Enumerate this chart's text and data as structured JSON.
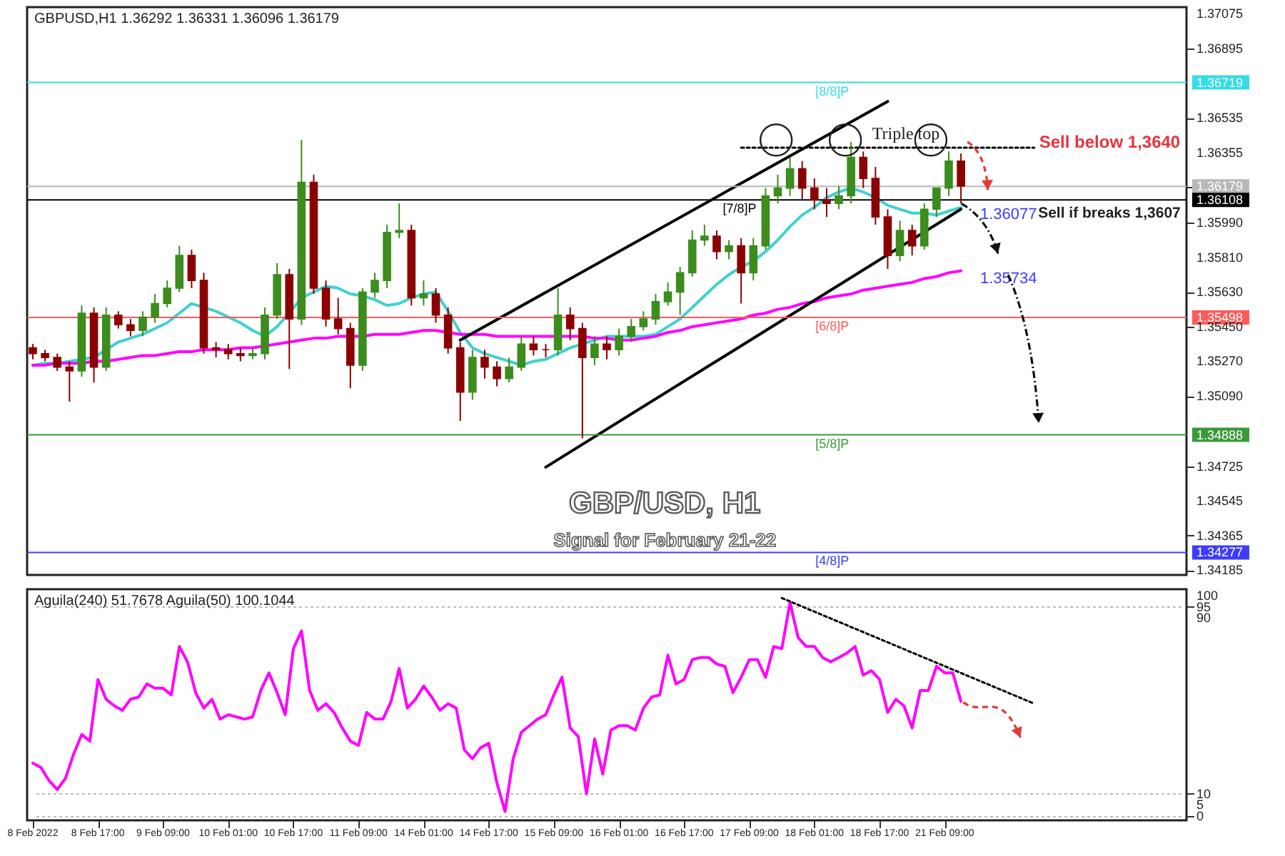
{
  "chart_data": [
    {
      "type": "candlestick",
      "title": "GBP/USD, H1",
      "subtitle": "Signal for February 21-22",
      "categories": [
        null,
        null,
        null,
        null,
        null,
        null,
        null,
        null,
        null,
        null,
        null,
        null,
        null,
        null,
        null,
        null,
        null,
        null,
        null,
        null,
        null,
        null,
        null,
        null,
        null,
        null,
        null,
        null,
        null,
        null,
        null,
        null,
        null,
        null,
        null,
        null,
        null,
        null,
        null,
        null,
        null,
        null,
        null,
        null,
        null,
        null,
        null,
        null,
        null,
        null,
        null,
        null,
        null,
        null,
        null,
        null,
        null,
        null,
        null,
        null,
        null,
        null,
        null,
        null,
        null,
        null,
        null,
        null,
        null,
        null,
        null,
        null,
        null,
        null,
        null,
        null,
        null,
        null,
        null,
        null,
        null,
        null,
        null,
        null,
        null,
        null,
        null,
        null,
        null,
        null,
        null,
        null,
        null,
        null,
        null
      ],
      "ohlc": [
        [
          1.3534,
          1.3536,
          1.3528,
          1.3531
        ],
        [
          1.3531,
          1.3533,
          1.3527,
          1.3529
        ],
        [
          1.3529,
          1.3531,
          1.3522,
          1.3524
        ],
        [
          1.3524,
          1.3527,
          1.3506,
          1.3522
        ],
        [
          1.3522,
          1.3556,
          1.3519,
          1.3552
        ],
        [
          1.3552,
          1.3555,
          1.3516,
          1.3524
        ],
        [
          1.3524,
          1.3555,
          1.3522,
          1.3551
        ],
        [
          1.3551,
          1.3553,
          1.3544,
          1.3546
        ],
        [
          1.3546,
          1.3549,
          1.354,
          1.3543
        ],
        [
          1.3543,
          1.3553,
          1.354,
          1.355
        ],
        [
          1.355,
          1.3562,
          1.3547,
          1.3557
        ],
        [
          1.3557,
          1.3569,
          1.3555,
          1.3565
        ],
        [
          1.3565,
          1.3587,
          1.3563,
          1.3582
        ],
        [
          1.3582,
          1.3585,
          1.3565,
          1.3569
        ],
        [
          1.3569,
          1.3573,
          1.3531,
          1.3534
        ],
        [
          1.3534,
          1.3537,
          1.3529,
          1.3533
        ],
        [
          1.3533,
          1.3536,
          1.3528,
          1.3531
        ],
        [
          1.3531,
          1.3534,
          1.3527,
          1.353
        ],
        [
          1.353,
          1.3534,
          1.3528,
          1.3531
        ],
        [
          1.3531,
          1.3555,
          1.3528,
          1.3551
        ],
        [
          1.3551,
          1.3578,
          1.3549,
          1.3572
        ],
        [
          1.3572,
          1.3575,
          1.3523,
          1.3549
        ],
        [
          1.3549,
          1.3642,
          1.3546,
          1.362
        ],
        [
          1.362,
          1.3624,
          1.3562,
          1.3565
        ],
        [
          1.3565,
          1.3569,
          1.3545,
          1.3549
        ],
        [
          1.3549,
          1.356,
          1.3541,
          1.3544
        ],
        [
          1.3544,
          1.3547,
          1.3513,
          1.3525
        ],
        [
          1.3525,
          1.3565,
          1.3522,
          1.3563
        ],
        [
          1.3563,
          1.3573,
          1.356,
          1.3569
        ],
        [
          1.3569,
          1.3598,
          1.3565,
          1.3594
        ],
        [
          1.3594,
          1.3609,
          1.3591,
          1.3595
        ],
        [
          1.3595,
          1.3598,
          1.3556,
          1.356
        ],
        [
          1.356,
          1.3569,
          1.3556,
          1.3562
        ],
        [
          1.3562,
          1.3565,
          1.3547,
          1.3551
        ],
        [
          1.3551,
          1.3555,
          1.3531,
          1.3534
        ],
        [
          1.3534,
          1.3537,
          1.3496,
          1.3511
        ],
        [
          1.3511,
          1.3533,
          1.3507,
          1.3529
        ],
        [
          1.3529,
          1.3533,
          1.3518,
          1.3524
        ],
        [
          1.3524,
          1.3527,
          1.3514,
          1.3518
        ],
        [
          1.3518,
          1.3529,
          1.3516,
          1.3524
        ],
        [
          1.3524,
          1.354,
          1.3522,
          1.3536
        ],
        [
          1.3536,
          1.354,
          1.353,
          1.3533
        ],
        [
          1.3533,
          1.3536,
          1.3529,
          1.3533
        ],
        [
          1.3533,
          1.3565,
          1.353,
          1.3551
        ],
        [
          1.3551,
          1.3555,
          1.3538,
          1.3544
        ],
        [
          1.3544,
          1.3547,
          1.3487,
          1.3529
        ],
        [
          1.3529,
          1.354,
          1.3525,
          1.3536
        ],
        [
          1.3536,
          1.354,
          1.3528,
          1.3533
        ],
        [
          1.3533,
          1.3544,
          1.353,
          1.354
        ],
        [
          1.354,
          1.3549,
          1.3537,
          1.3545
        ],
        [
          1.3545,
          1.3553,
          1.3543,
          1.3549
        ],
        [
          1.3549,
          1.3562,
          1.3546,
          1.3558
        ],
        [
          1.3558,
          1.3568,
          1.3556,
          1.3563
        ],
        [
          1.3563,
          1.3576,
          1.3551,
          1.3573
        ],
        [
          1.3573,
          1.3595,
          1.3571,
          1.359
        ],
        [
          1.359,
          1.3598,
          1.3587,
          1.3592
        ],
        [
          1.3592,
          1.3595,
          1.358,
          1.3584
        ],
        [
          1.3584,
          1.359,
          1.358,
          1.3587
        ],
        [
          1.3587,
          1.3591,
          1.3557,
          1.3573
        ],
        [
          1.3573,
          1.3591,
          1.3569,
          1.3587
        ],
        [
          1.3587,
          1.3617,
          1.3585,
          1.3613
        ],
        [
          1.3613,
          1.3624,
          1.3609,
          1.3617
        ],
        [
          1.3617,
          1.3633,
          1.3613,
          1.3627
        ],
        [
          1.3627,
          1.3631,
          1.3611,
          1.3617
        ],
        [
          1.3617,
          1.3622,
          1.3606,
          1.3611
        ],
        [
          1.3611,
          1.3617,
          1.3602,
          1.3609
        ],
        [
          1.3609,
          1.3618,
          1.3606,
          1.3613
        ],
        [
          1.3613,
          1.3641,
          1.3609,
          1.3633
        ],
        [
          1.3633,
          1.3636,
          1.3617,
          1.3622
        ],
        [
          1.3622,
          1.3628,
          1.3598,
          1.3602
        ],
        [
          1.3602,
          1.3606,
          1.3575,
          1.3582
        ],
        [
          1.3582,
          1.36,
          1.3579,
          1.3595
        ],
        [
          1.3595,
          1.3598,
          1.3582,
          1.3587
        ],
        [
          1.3587,
          1.3609,
          1.3585,
          1.3606
        ],
        [
          1.3606,
          1.3617,
          1.3602,
          1.3617
        ],
        [
          1.3617,
          1.3636,
          1.3613,
          1.3631
        ],
        [
          1.3631,
          1.3635,
          1.3609,
          1.3618
        ],
        null,
        null,
        null,
        null,
        null,
        null,
        null,
        null,
        null,
        null,
        null,
        null,
        null,
        null,
        null,
        null,
        null,
        null
      ],
      "colors": [
        "#8b0000",
        "#8b0000",
        "#8b0000",
        "#8b0000",
        "#3c8c1e",
        "#8b0000",
        "#3c8c1e",
        "#8b0000",
        "#8b0000",
        "#3c8c1e",
        "#3c8c1e",
        "#3c8c1e",
        "#3c8c1e",
        "#8b0000",
        "#8b0000",
        "#8b0000",
        "#8b0000",
        "#8b0000",
        "#3c8c1e",
        "#3c8c1e",
        "#3c8c1e",
        "#8b0000",
        "#3c8c1e",
        "#8b0000",
        "#8b0000",
        "#8b0000",
        "#8b0000",
        "#3c8c1e",
        "#3c8c1e",
        "#3c8c1e",
        "#3c8c1e",
        "#8b0000",
        "#3c8c1e",
        "#8b0000",
        "#8b0000",
        "#8b0000",
        "#3c8c1e",
        "#8b0000",
        "#8b0000",
        "#3c8c1e",
        "#3c8c1e",
        "#8b0000",
        "#8b0000",
        "#3c8c1e",
        "#8b0000",
        "#8b0000",
        "#3c8c1e",
        "#8b0000",
        "#3c8c1e",
        "#3c8c1e",
        "#3c8c1e",
        "#3c8c1e",
        "#3c8c1e",
        "#3c8c1e",
        "#3c8c1e",
        "#3c8c1e",
        "#8b0000",
        "#3c8c1e",
        "#8b0000",
        "#3c8c1e",
        "#3c8c1e",
        "#3c8c1e",
        "#3c8c1e",
        "#8b0000",
        "#8b0000",
        "#8b0000",
        "#3c8c1e",
        "#3c8c1e",
        "#8b0000",
        "#8b0000",
        "#8b0000",
        "#3c8c1e",
        "#8b0000",
        "#3c8c1e",
        "#3c8c1e",
        "#3c8c1e",
        "#8b0000",
        null,
        null,
        null,
        null,
        null,
        null,
        null,
        null,
        null,
        null,
        null,
        null,
        null,
        null,
        null,
        null,
        null,
        null
      ],
      "series": [
        {
          "type": "line",
          "color": "#40d0d0",
          "values": [
            1.3525,
            1.3526,
            1.3526,
            1.3527,
            1.3528,
            1.3529,
            1.3533,
            1.3537,
            1.3539,
            1.3541,
            1.3544,
            1.3547,
            1.3552,
            1.3557,
            1.3555,
            1.3553,
            1.355,
            1.3547,
            1.3543,
            1.354,
            1.3545,
            1.3552,
            1.356,
            1.3563,
            1.3566,
            1.3565,
            1.3562,
            1.3561,
            1.3559,
            1.3556,
            1.3557,
            1.356,
            1.3562,
            1.3563,
            1.3553,
            1.3542,
            1.3534,
            1.3531,
            1.3529,
            1.3527,
            1.3525,
            1.3527,
            1.3528,
            1.3531,
            1.3534,
            1.3536,
            1.3538,
            1.354,
            1.354,
            1.354,
            1.354,
            1.3541,
            1.3545,
            1.3549,
            1.3555,
            1.3561,
            1.3567,
            1.3572,
            1.3576,
            1.3579,
            1.3584,
            1.359,
            1.3597,
            1.3603,
            1.3607,
            1.3612,
            1.3615,
            1.3617,
            1.3615,
            1.3612,
            1.3608,
            1.3606,
            1.3604,
            1.3604,
            1.3603,
            1.3605,
            1.3607,
            null,
            null,
            null,
            null,
            null,
            null,
            null,
            null,
            null,
            null,
            null,
            null,
            null,
            null,
            null,
            null,
            null,
            null
          ]
        },
        {
          "type": "line",
          "color": "#ff00ff",
          "values": [
            1.3525,
            1.3525,
            1.3526,
            1.3526,
            1.3526,
            1.3527,
            1.3527,
            1.3528,
            1.3529,
            1.353,
            1.353,
            1.3531,
            1.3532,
            1.3532,
            1.3533,
            1.3533,
            1.3533,
            1.3534,
            1.3534,
            1.3535,
            1.3536,
            1.3537,
            1.3538,
            1.3539,
            1.3539,
            1.354,
            1.354,
            1.354,
            1.3541,
            1.3541,
            1.3541,
            1.3542,
            1.3543,
            1.3543,
            1.3542,
            1.3541,
            1.3541,
            1.3541,
            1.354,
            1.354,
            1.354,
            1.354,
            1.354,
            1.354,
            1.354,
            1.354,
            1.3539,
            1.3539,
            1.3538,
            1.3538,
            1.3539,
            1.354,
            1.3542,
            1.3543,
            1.3545,
            1.3546,
            1.3547,
            1.3548,
            1.3549,
            1.3551,
            1.3552,
            1.3554,
            1.3555,
            1.3557,
            1.3558,
            1.356,
            1.3561,
            1.3562,
            1.3564,
            1.3565,
            1.3566,
            1.3567,
            1.3568,
            1.357,
            1.3571,
            1.3573,
            1.3574,
            null,
            null,
            null,
            null,
            null,
            null,
            null,
            null,
            null,
            null,
            null,
            null,
            null,
            null,
            null,
            null,
            null,
            null
          ]
        },
        {
          "type": "line",
          "color": "#000000",
          "values": [
            null,
            null,
            null,
            null,
            null,
            null,
            null,
            null,
            null,
            null,
            null,
            null,
            null,
            null,
            null,
            null,
            null,
            null,
            null,
            null,
            null,
            null,
            null,
            null,
            null,
            null,
            null,
            null,
            null,
            null,
            null,
            null,
            null,
            null,
            null,
            1.3538,
            null,
            null,
            null,
            null,
            null,
            null,
            null,
            null,
            null,
            null,
            null,
            null,
            null,
            null,
            null,
            null,
            null,
            null,
            null,
            null,
            null,
            null,
            null,
            null,
            null,
            null,
            null,
            null,
            null,
            null,
            null,
            null,
            null,
            null,
            1.3662,
            null,
            null,
            null,
            null,
            null,
            null,
            null,
            null,
            null,
            null,
            null,
            null,
            null,
            null,
            null,
            null,
            null,
            null,
            null,
            null,
            null,
            null,
            null,
            null
          ]
        },
        {
          "type": "line",
          "color": "#000000",
          "values": [
            null,
            null,
            null,
            null,
            null,
            null,
            null,
            null,
            null,
            null,
            null,
            null,
            null,
            null,
            null,
            null,
            null,
            null,
            null,
            null,
            null,
            null,
            null,
            null,
            null,
            null,
            null,
            null,
            null,
            null,
            null,
            null,
            null,
            null,
            null,
            null,
            null,
            null,
            null,
            null,
            null,
            null,
            1.3472,
            null,
            null,
            null,
            null,
            null,
            null,
            null,
            null,
            null,
            null,
            null,
            null,
            null,
            null,
            null,
            null,
            null,
            null,
            null,
            null,
            null,
            null,
            null,
            null,
            null,
            null,
            null,
            null,
            null,
            null,
            null,
            null,
            null,
            1.3606,
            null,
            null,
            null,
            null,
            null,
            null,
            null,
            null,
            null,
            null,
            null,
            null,
            null,
            null,
            null,
            null,
            null,
            null
          ]
        },
        {
          "type": "line",
          "color": "#000000",
          "line_style": "dotted",
          "values": [
            null,
            null,
            null,
            null,
            null,
            null,
            null,
            null,
            null,
            null,
            null,
            null,
            null,
            null,
            null,
            null,
            null,
            null,
            null,
            null,
            null,
            null,
            null,
            null,
            null,
            null,
            null,
            null,
            null,
            null,
            null,
            null,
            null,
            null,
            null,
            null,
            null,
            null,
            null,
            null,
            null,
            null,
            null,
            null,
            null,
            null,
            null,
            null,
            null,
            null,
            null,
            null,
            null,
            null,
            null,
            null,
            null,
            null,
            1.3638,
            null,
            null,
            null,
            null,
            null,
            null,
            null,
            null,
            null,
            null,
            null,
            null,
            null,
            null,
            null,
            null,
            null,
            null,
            null,
            null,
            null,
            null,
            null,
            1.3638,
            null,
            null,
            null,
            null,
            null,
            null,
            null,
            null,
            null,
            null,
            null,
            null
          ]
        }
      ],
      "ref_lines": [
        {
          "axis": "y",
          "value": 1.36719,
          "label": "[8/8]P",
          "color": "#33dde8"
        },
        {
          "axis": "y",
          "value": 1.36179,
          "label": null,
          "color": "#b8b8b8"
        },
        {
          "axis": "y",
          "value": 1.36108,
          "label": "[7/8]P",
          "color": "#000000"
        },
        {
          "axis": "y",
          "value": 1.35498,
          "label": "[6/8]P",
          "color": "#ff5a5a"
        },
        {
          "axis": "y",
          "value": 1.34888,
          "label": "[5/8]P",
          "color": "#3a9a3a"
        },
        {
          "axis": "y",
          "value": 1.34277,
          "label": "[4/8]P",
          "color": "#3c3cff"
        }
      ],
      "annotations": [
        "GBPUSD,H1  1.36292 1.36331 1.36096 1.36179",
        "Triple top",
        "Sell below 1,3640",
        "Sell if breaks 1,3607",
        "1.36077",
        "1.35734"
      ],
      "ylim": [
        1.3416,
        1.3711
      ],
      "yticks": [
        {
          "value": 1.34185,
          "label": "1.34185"
        },
        1.34277,
        1.34365,
        1.34545,
        1.34725,
        1.34888,
        {
          "value": 1.3509,
          "label": "1.35090"
        },
        {
          "value": 1.3527,
          "label": "1.35270"
        },
        {
          "value": 1.3545,
          "label": "1.35450"
        },
        1.35498,
        {
          "value": 1.3563,
          "label": "1.35630"
        },
        {
          "value": 1.3581,
          "label": "1.35810"
        },
        {
          "value": 1.3599,
          "label": "1.35990"
        },
        1.36108,
        1.36179,
        1.36355,
        1.36535,
        1.36719,
        1.36895,
        1.37075
      ],
      "tick_labels": "y"
    },
    {
      "type": "line",
      "categories": [
        "8 Feb 2022",
        null,
        null,
        null,
        null,
        null,
        null,
        null,
        "8 Feb 17:00",
        null,
        null,
        null,
        null,
        null,
        null,
        null,
        "9 Feb 09:00",
        null,
        null,
        null,
        null,
        null,
        null,
        null,
        "10 Feb 01:00",
        null,
        null,
        null,
        null,
        null,
        null,
        null,
        "10 Feb 17:00",
        null,
        null,
        null,
        null,
        null,
        null,
        null,
        "11 Feb 09:00",
        null,
        null,
        null,
        null,
        null,
        null,
        null,
        "14 Feb 01:00",
        null,
        null,
        null,
        null,
        null,
        null,
        null,
        "14 Feb 17:00",
        null,
        null,
        null,
        null,
        null,
        null,
        null,
        "15 Feb 09:00",
        null,
        null,
        null,
        null,
        null,
        null,
        null,
        "16 Feb 01:00",
        null,
        null,
        null,
        null,
        null,
        null,
        null,
        "16 Feb 17:00",
        null,
        null,
        null,
        null,
        null,
        null,
        null,
        "17 Feb 09:00",
        null,
        null,
        null,
        null,
        null,
        null,
        null,
        "18 Feb 01:00",
        null,
        null,
        null,
        null,
        null,
        null,
        null,
        "18 Feb 17:00",
        null,
        null,
        null,
        null,
        null,
        null,
        null,
        "21 Feb 09:00",
        null,
        null,
        null,
        null,
        null,
        null,
        null,
        null,
        null,
        null,
        null,
        null,
        null,
        null,
        null,
        null,
        null,
        null,
        null,
        null,
        null,
        null,
        null,
        null,
        null,
        null,
        null,
        null,
        null
      ],
      "series": [
        {
          "color": "#ff00ff",
          "values": [
            24,
            22,
            16,
            12,
            17,
            28,
            37,
            34,
            62,
            53,
            50,
            48,
            53,
            54,
            60,
            58,
            58,
            55,
            77,
            70,
            56,
            49,
            53,
            44,
            46,
            45,
            44,
            45,
            57,
            65,
            56,
            46,
            76,
            84,
            57,
            48,
            51,
            47,
            40,
            34,
            32,
            47,
            44,
            44,
            52,
            67,
            49,
            53,
            59,
            54,
            48,
            51,
            49,
            30,
            26,
            31,
            33,
            15,
            2,
            26,
            38,
            41,
            44,
            46,
            55,
            63,
            40,
            36,
            10,
            35,
            19,
            39,
            41,
            41,
            39,
            49,
            54,
            55,
            73,
            60,
            62,
            71,
            72,
            72,
            69,
            68,
            56,
            63,
            71,
            71,
            63,
            77,
            76,
            97,
            81,
            77,
            77,
            72,
            70,
            72,
            74,
            77,
            64,
            66,
            62,
            47,
            53,
            50,
            40,
            57,
            57,
            68,
            65,
            65,
            52,
            null,
            null,
            null,
            null,
            null,
            null,
            null,
            null,
            null,
            null,
            null,
            null,
            null,
            null,
            null,
            null,
            null,
            null,
            null,
            null,
            null,
            null,
            null,
            null,
            null,
            null,
            null
          ]
        },
        {
          "type": "line",
          "color": "#000000",
          "line_style": "dotted",
          "values": [
            null,
            null,
            null,
            null,
            null,
            null,
            null,
            null,
            null,
            null,
            null,
            null,
            null,
            null,
            null,
            null,
            null,
            null,
            null,
            null,
            null,
            null,
            null,
            null,
            null,
            null,
            null,
            null,
            null,
            null,
            null,
            null,
            null,
            null,
            null,
            null,
            null,
            null,
            null,
            null,
            null,
            null,
            null,
            null,
            null,
            null,
            null,
            null,
            null,
            null,
            null,
            null,
            null,
            null,
            null,
            null,
            null,
            null,
            null,
            null,
            null,
            null,
            null,
            null,
            null,
            null,
            null,
            null,
            null,
            null,
            null,
            null,
            null,
            null,
            null,
            null,
            null,
            null,
            null,
            null,
            null,
            null,
            null,
            null,
            null,
            null,
            null,
            null,
            null,
            null,
            null,
            null,
            99,
            null,
            null,
            null,
            null,
            null,
            null,
            null,
            null,
            null,
            null,
            null,
            null,
            null,
            null,
            null,
            null,
            null,
            null,
            null,
            null,
            null,
            null,
            null,
            null,
            null,
            null,
            null,
            null,
            null,
            null,
            51,
            null,
            null,
            null,
            null,
            null,
            null,
            null,
            null,
            null,
            null,
            null,
            null,
            null,
            null,
            null,
            null,
            null,
            null
          ]
        }
      ],
      "annotations": [
        "Aguila(240) 51.7678  Aguila(50) 100.1044"
      ],
      "ylim": [
        -2,
        103
      ],
      "yticks": [
        0,
        5,
        10,
        90,
        95,
        100
      ],
      "grid": "y"
    }
  ]
}
